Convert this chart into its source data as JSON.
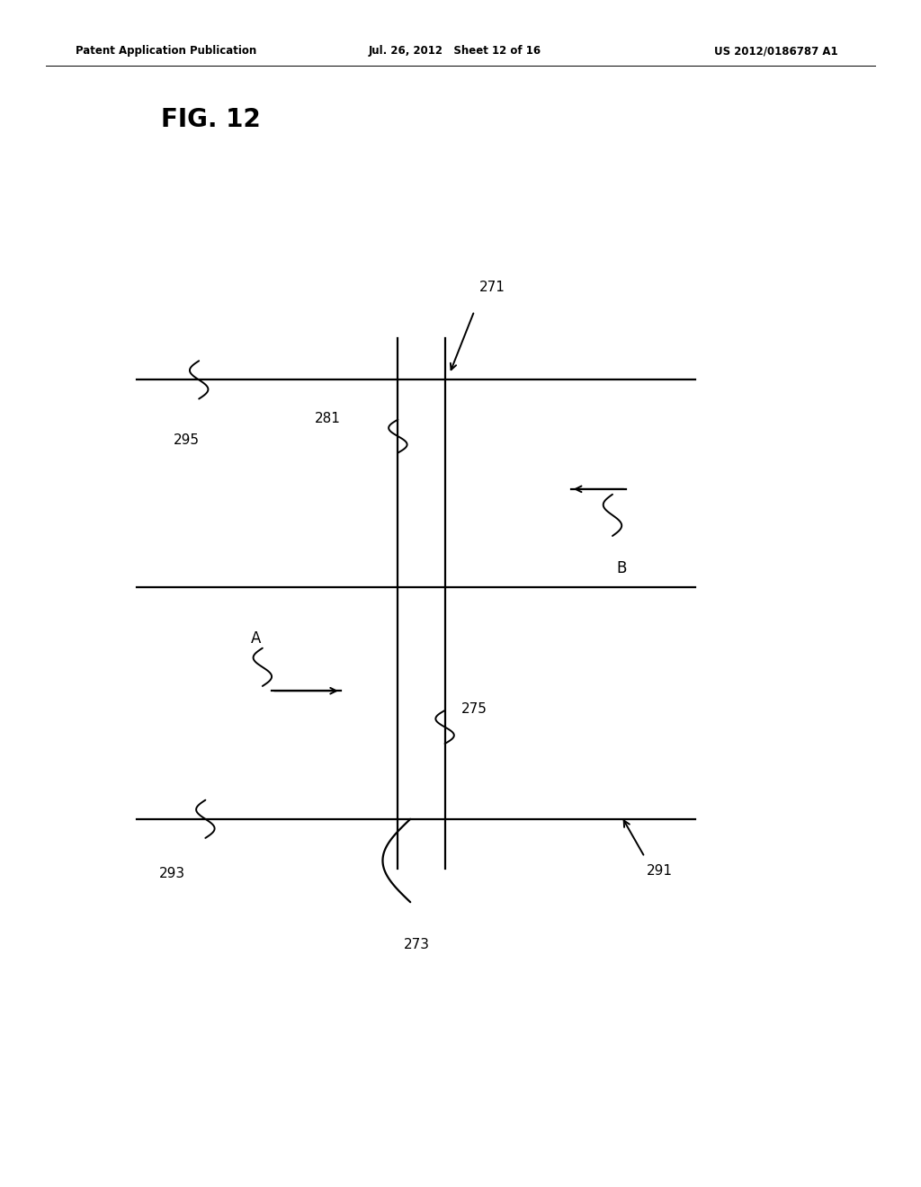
{
  "bg_color": "#ffffff",
  "header_left": "Patent Application Publication",
  "header_mid": "Jul. 26, 2012   Sheet 12 of 16",
  "header_right": "US 2012/0186787 A1",
  "fig_title": "FIG. 12",
  "page_width": 10.24,
  "page_height": 13.2,
  "dpi": 100
}
